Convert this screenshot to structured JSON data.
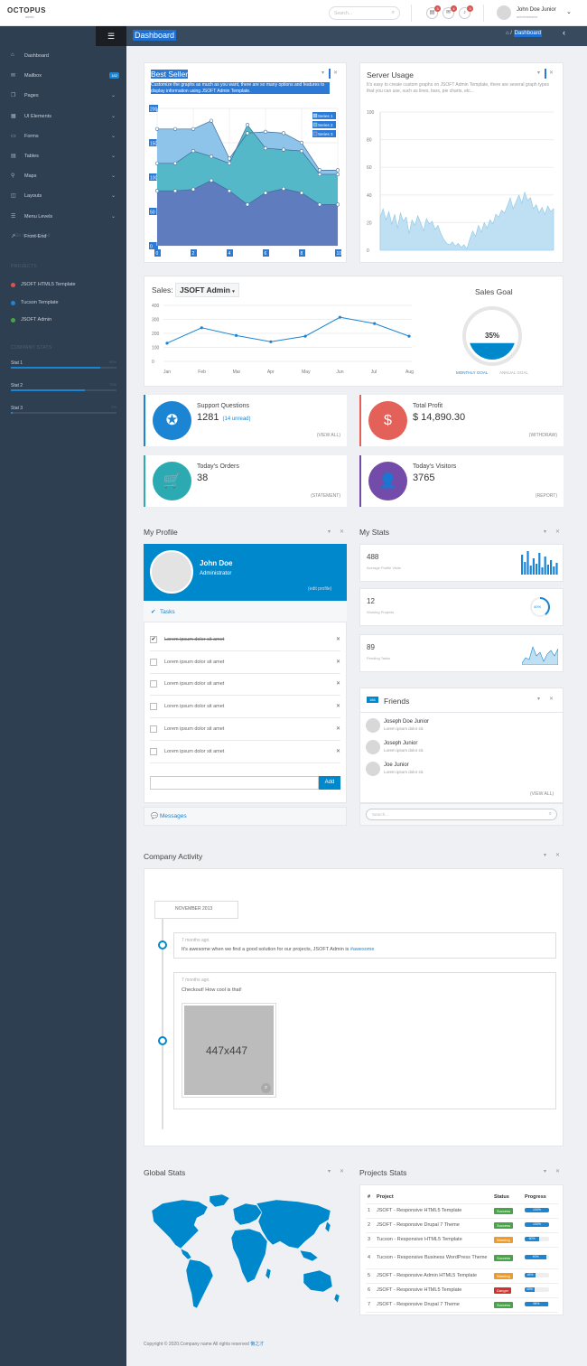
{
  "brand": {
    "name": "OCTOPUS",
    "sub": "admin"
  },
  "topbar": {
    "search_placeholder": "Search...",
    "badges": [
      "3",
      "4",
      "3"
    ],
    "user_name": "John Doe Junior",
    "user_role": "administrator"
  },
  "sidebar": {
    "items": [
      {
        "label": "Dashboard",
        "icon": "home-icon",
        "chevron": false
      },
      {
        "label": "Mailbox",
        "icon": "mail-icon",
        "badge": "182",
        "chevron": false
      },
      {
        "label": "Pages",
        "icon": "pages-icon",
        "chevron": true
      },
      {
        "label": "UI Elements",
        "icon": "ui-elements-icon",
        "chevron": true
      },
      {
        "label": "Forms",
        "icon": "forms-icon",
        "chevron": true
      },
      {
        "label": "Tables",
        "icon": "table-icon",
        "chevron": true
      },
      {
        "label": "Maps",
        "icon": "map-marker-icon",
        "chevron": true
      },
      {
        "label": "Layouts",
        "icon": "layouts-icon",
        "chevron": true
      },
      {
        "label": "Menu Levels",
        "icon": "menu-levels-icon",
        "chevron": true
      },
      {
        "label": "Front-End",
        "icon": "external-link-icon",
        "extra": "Go to Front-End",
        "chevron": false
      }
    ],
    "projects_title": "PROJECTS",
    "projects": [
      {
        "label": "JSOFT HTML5 Template",
        "color": "#d9534f"
      },
      {
        "label": "Tucson Template",
        "color": "#1b85d4"
      },
      {
        "label": "JSOFT Admin",
        "color": "#47a447"
      }
    ],
    "stats_title": "COMPANY STATS",
    "stats": [
      {
        "label": "Stat 1",
        "percent": "85%",
        "value": 0.85
      },
      {
        "label": "Stat 2",
        "percent": "70%",
        "value": 0.7
      },
      {
        "label": "Stat 3",
        "percent": "2%",
        "value": 0.02
      }
    ]
  },
  "header": {
    "title": "Dashboard",
    "breadcrumb": "/",
    "breadcrumb_current": "Dashboard"
  },
  "best_seller": {
    "title": "Best Seller",
    "desc": "Customize the graphs as much as you want, there are so many options and features to display information using JSOFT Admin Template."
  },
  "server_usage": {
    "title": "Server Usage",
    "desc": "It's easy to create custom graphs on JSOFT Admin Template, there are several graph types that you can use, such as lines, bars, pie charts, etc..."
  },
  "sales": {
    "label": "Sales:",
    "dropdown": "JSOFT Admin",
    "goal_title": "Sales Goal",
    "goal_percent": "35%",
    "goal_value": 0.35,
    "tab_monthly": "MONTHLY GOAL",
    "tab_annual": "ANNUAL GOAL"
  },
  "summary": [
    {
      "label": "Support Questions",
      "value": "1281",
      "extra": "(14 unread)",
      "link": "(VIEW ALL)",
      "color": "#1b85d4",
      "icon": "life-ring-icon",
      "glyph": "✪"
    },
    {
      "label": "Total Profit",
      "value": "$ 14,890.30",
      "extra": "",
      "link": "(WITHDRAW)",
      "color": "#e36159",
      "icon": "dollar-icon",
      "glyph": "$"
    },
    {
      "label": "Today's Orders",
      "value": "38",
      "extra": "",
      "link": "(STATEMENT)",
      "color": "#2baab1",
      "icon": "shopping-cart-icon",
      "glyph": "🛒"
    },
    {
      "label": "Today's Visitors",
      "value": "3765",
      "extra": "",
      "link": "(REPORT)",
      "color": "#734ba9",
      "icon": "user-icon",
      "glyph": "👤"
    }
  ],
  "profile": {
    "section": "My Profile",
    "name": "John Doe",
    "role": "Administrator",
    "edit": "(edit profile)",
    "tasks_title": "Tasks",
    "add_label": "Add",
    "messages": "Messages",
    "tasks": [
      {
        "text": "Lorem ipsum dolor sit amet",
        "done": true
      },
      {
        "text": "Lorem ipsum dolor sit amet",
        "done": false
      },
      {
        "text": "Lorem ipsum dolor sit amet",
        "done": false
      },
      {
        "text": "Lorem ipsum dolor sit amet",
        "done": false
      },
      {
        "text": "Lorem ipsum dolor sit amet",
        "done": false
      },
      {
        "text": "Lorem ipsum dolor sit amet",
        "done": false
      }
    ]
  },
  "mystats": {
    "section": "My Stats",
    "items": [
      {
        "value": "488",
        "label": "Average Profile Visits"
      },
      {
        "value": "12",
        "label": "Working Projects",
        "gauge": "40%",
        "gauge_value": 0.4
      },
      {
        "value": "89",
        "label": "Pending Tasks"
      }
    ]
  },
  "friends": {
    "title": "Friends",
    "count": "186",
    "view_all": "(VIEW ALL)",
    "search_placeholder": "Search...",
    "items": [
      {
        "name": "Joseph Doe Junior",
        "sub": "Lorem ipsum dolor sit."
      },
      {
        "name": "Joseph Junior",
        "sub": "Lorem ipsum dolor sit."
      },
      {
        "name": "Joe Junior",
        "sub": "Lorem ipsum dolor sit."
      }
    ]
  },
  "activity": {
    "section": "Company Activity",
    "month": "NOVEMBER 2013",
    "post1": {
      "time": "7 months ago.",
      "text": "It's awesome when we find a good solution for our projects, JSOFT Admin is ",
      "tag": "#awesome"
    },
    "post2": {
      "time": "7 months ago.",
      "text": "Checkout! How cool is that!",
      "image": "447x447"
    }
  },
  "global_stats": {
    "section": "Global Stats"
  },
  "projects_stats": {
    "section": "Projects Stats",
    "headers": [
      "#",
      "Project",
      "Status",
      "Progress"
    ],
    "rows": [
      {
        "n": "1",
        "project": "JSOFT - Responsive HTML5 Template",
        "status": "Success",
        "status_color": "#47a447",
        "progress": "100%",
        "value": 1.0
      },
      {
        "n": "2",
        "project": "JSOFT - Responsive Drupal 7 Theme",
        "status": "Success",
        "status_color": "#47a447",
        "progress": "100%",
        "value": 1.0
      },
      {
        "n": "3",
        "project": "Tucson - Responsive HTML5 Template",
        "status": "Warning",
        "status_color": "#ed9c28",
        "progress": "60%",
        "value": 0.6
      },
      {
        "n": "4",
        "project": "Tucson - Responsive Business WordPress Theme",
        "status": "Success",
        "status_color": "#47a447",
        "progress": "90%",
        "value": 0.9
      },
      {
        "n": "5",
        "project": "JSOFT - Responsive Admin HTML5 Template",
        "status": "Warning",
        "status_color": "#ed9c28",
        "progress": "45%",
        "value": 0.45
      },
      {
        "n": "6",
        "project": "JSOFT - Responsive HTML5 Template",
        "status": "Danger",
        "status_color": "#d2322d",
        "progress": "40%",
        "value": 0.4
      },
      {
        "n": "7",
        "project": "JSOFT - Responsive Drupal 7 Theme",
        "status": "Success",
        "status_color": "#47a447",
        "progress": "95%",
        "value": 0.95
      }
    ]
  },
  "footer": {
    "text": "Copyright © 2020.Company name All rights reserved ",
    "link": "懒之才"
  },
  "chart_data": [
    {
      "type": "area",
      "title": "Best Seller",
      "x": [
        1,
        2,
        3,
        4,
        5,
        6,
        7,
        8,
        9,
        10,
        11
      ],
      "x_ticks": [
        "0",
        "2",
        "4",
        "6",
        "8",
        "10"
      ],
      "y_ticks": [
        "0",
        "50",
        "100",
        "150",
        "200"
      ],
      "ylim": [
        0,
        200
      ],
      "xlim": [
        0,
        10
      ],
      "series": [
        {
          "name": "Series 1",
          "color": "#8ec4ea",
          "values": [
            170,
            170,
            170,
            182,
            127,
            164,
            166,
            164,
            150,
            110,
            110
          ]
        },
        {
          "name": "Series 2",
          "color": "#55b8c8",
          "values": [
            120,
            120,
            138,
            130,
            120,
            176,
            142,
            140,
            138,
            104,
            104
          ]
        },
        {
          "name": "Series 3",
          "color": "#5f7cbf",
          "values": [
            80,
            80,
            82,
            95,
            80,
            60,
            77,
            83,
            77,
            60,
            60
          ]
        }
      ],
      "legend": "top-right"
    },
    {
      "type": "line",
      "title": "Server Usage",
      "y_ticks": [
        "0",
        "20",
        "40",
        "60",
        "80",
        "100"
      ],
      "ylim": [
        0,
        100
      ],
      "series": [
        {
          "values": [
            24,
            30,
            22,
            28,
            19,
            26,
            16,
            27,
            21,
            24,
            12,
            22,
            18,
            25,
            20,
            14,
            23,
            19,
            21,
            15,
            18,
            12,
            8,
            5,
            4,
            6,
            3,
            5,
            2,
            4,
            1,
            8,
            14,
            10,
            18,
            13,
            20,
            16,
            22,
            19,
            26,
            24,
            29,
            27,
            32,
            38,
            30,
            35,
            40,
            34,
            42,
            36,
            38,
            30,
            33,
            27,
            31,
            26,
            32,
            28,
            30
          ]
        }
      ]
    },
    {
      "type": "line",
      "title": "Sales",
      "categories": [
        "Jan",
        "Feb",
        "Mar",
        "Apr",
        "May",
        "Jun",
        "Jul",
        "Aug"
      ],
      "y_ticks": [
        "0",
        "100",
        "200",
        "300",
        "400"
      ],
      "ylim": [
        0,
        400
      ],
      "series": [
        {
          "values": [
            130,
            240,
            185,
            140,
            180,
            315,
            270,
            180
          ]
        }
      ]
    }
  ]
}
